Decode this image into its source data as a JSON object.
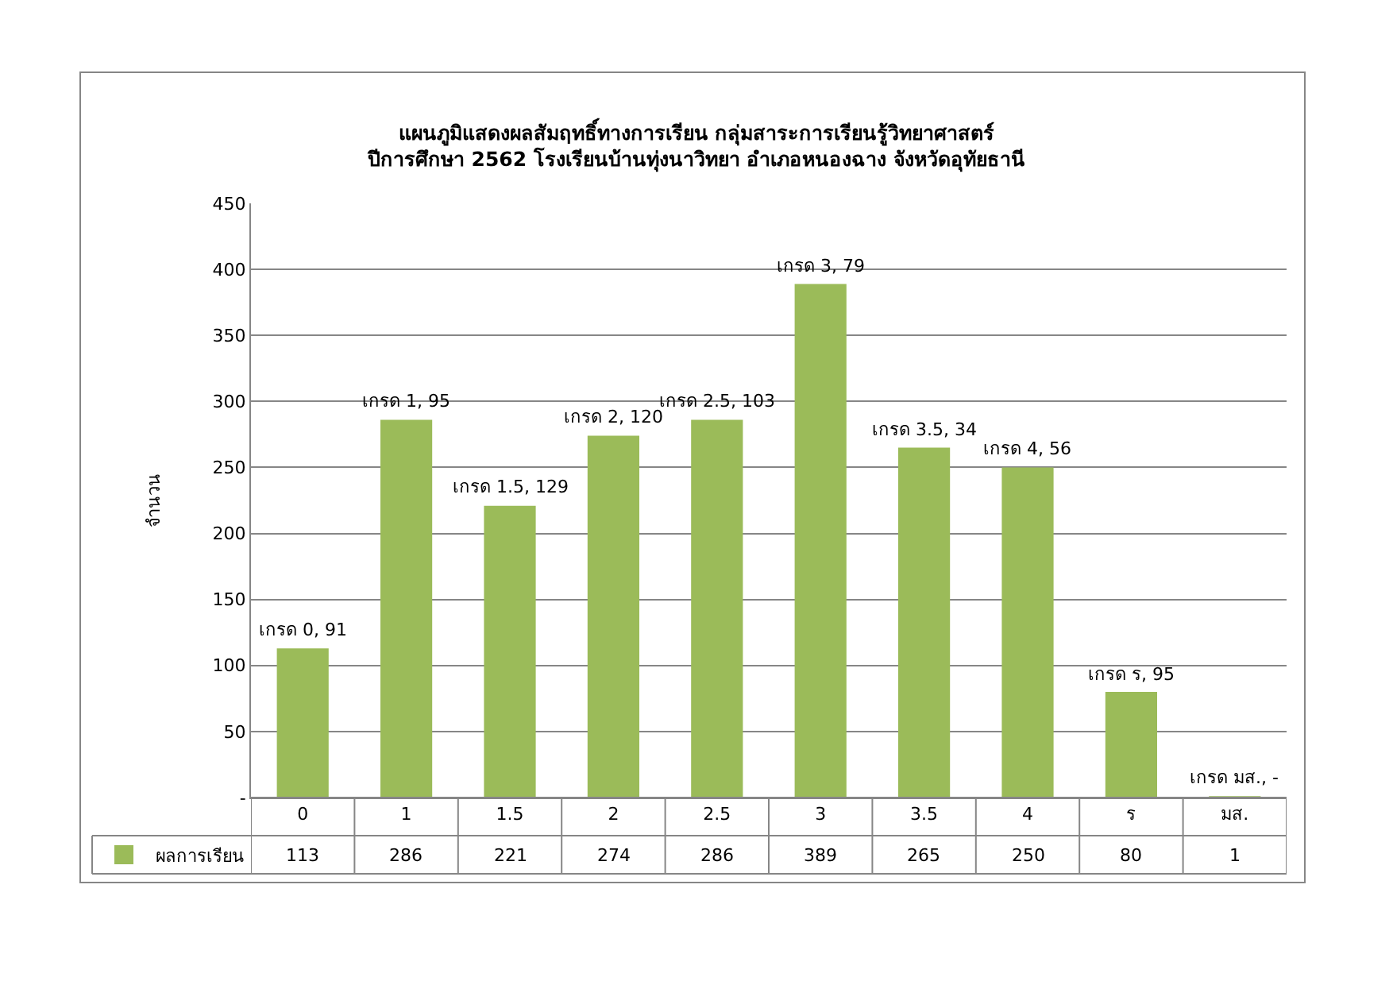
{
  "chart_data": {
    "type": "bar",
    "title": "แผนภูมิแสดงผลสัมฤทธิ์ทางการเรียน กลุ่มสาระการเรียนรู้วิทยาศาสตร์\nปีการศึกษา 2562 โรงเรียนบ้านทุ่งนาวิทยา อำเภอหนองฉาง จังหวัดอุทัยธานี",
    "ylabel": "จำนวน",
    "categories": [
      "0",
      "1",
      "1.5",
      "2",
      "2.5",
      "3",
      "3.5",
      "4",
      "ร",
      "มส."
    ],
    "series": [
      {
        "name": "ผลการเรียน",
        "color": "#9bbb59",
        "values": [
          113,
          286,
          221,
          274,
          286,
          389,
          265,
          250,
          80,
          1
        ]
      }
    ],
    "annotations": [
      {
        "text": "เกรด 0, 91",
        "x": "0",
        "y": 113
      },
      {
        "text": "เกรด 1, 95",
        "x": "1",
        "y": 286
      },
      {
        "text": "เกรด 1.5, 129",
        "x": "1.5",
        "y": 221
      },
      {
        "text": "เกรด 2, 120",
        "x": "2",
        "y": 274
      },
      {
        "text": "เกรด 2.5, 103",
        "x": "2.5",
        "y": 286
      },
      {
        "text": "เกรด 3, 79",
        "x": "3",
        "y": 389
      },
      {
        "text": "เกรด 3.5, 34",
        "x": "3.5",
        "y": 265
      },
      {
        "text": "เกรด 4, 56",
        "x": "4",
        "y": 250
      },
      {
        "text": "เกรด ร, 95",
        "x": "ร",
        "y": 80
      },
      {
        "text": "เกรด มส., -",
        "x": "มส.",
        "y": 1
      }
    ],
    "ylim": [
      0,
      450
    ],
    "yticks": [
      {
        "value": 0,
        "label": "-"
      },
      50,
      100,
      150,
      200,
      250,
      300,
      350,
      400,
      450
    ],
    "grid": "y",
    "legend": "bottom left",
    "data_labels": true
  }
}
